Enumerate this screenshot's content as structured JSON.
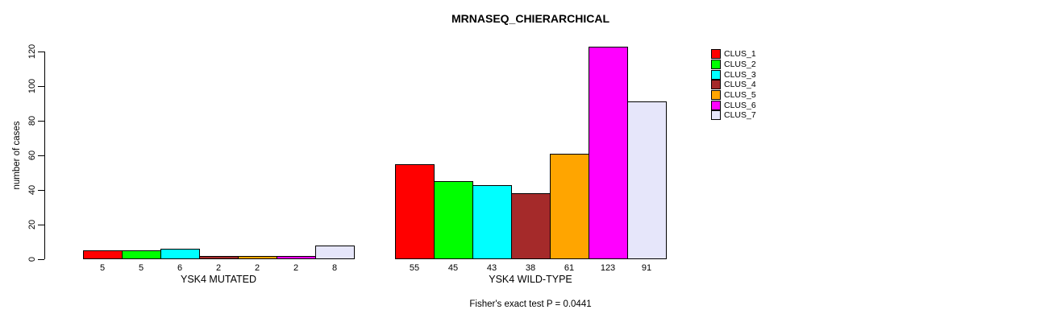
{
  "title": "MRNASEQ_CHIERARCHICAL",
  "footer": "Fisher's exact test P = 0.0441",
  "chart_data": {
    "type": "bar",
    "title": "MRNASEQ_CHIERARCHICAL",
    "xlabel": "",
    "ylabel": "number of cases",
    "ylim": [
      0,
      120
    ],
    "yticks": [
      0,
      20,
      40,
      60,
      80,
      100,
      120
    ],
    "grid": false,
    "legend_position": "right",
    "annotation": "Fisher's exact test P = 0.0441",
    "series": [
      {
        "name": "CLUS_1",
        "color": "#FF0000"
      },
      {
        "name": "CLUS_2",
        "color": "#00FF00"
      },
      {
        "name": "CLUS_3",
        "color": "#00FFFF"
      },
      {
        "name": "CLUS_4",
        "color": "#A52A2A"
      },
      {
        "name": "CLUS_5",
        "color": "#FFA500"
      },
      {
        "name": "CLUS_6",
        "color": "#FF00FF"
      },
      {
        "name": "CLUS_7",
        "color": "#E6E6FA"
      }
    ],
    "groups": [
      {
        "label": "YSK4 MUTATED",
        "values": [
          5,
          5,
          6,
          2,
          2,
          2,
          8
        ]
      },
      {
        "label": "YSK4 WILD-TYPE",
        "values": [
          55,
          45,
          43,
          38,
          61,
          123,
          91
        ]
      }
    ]
  }
}
